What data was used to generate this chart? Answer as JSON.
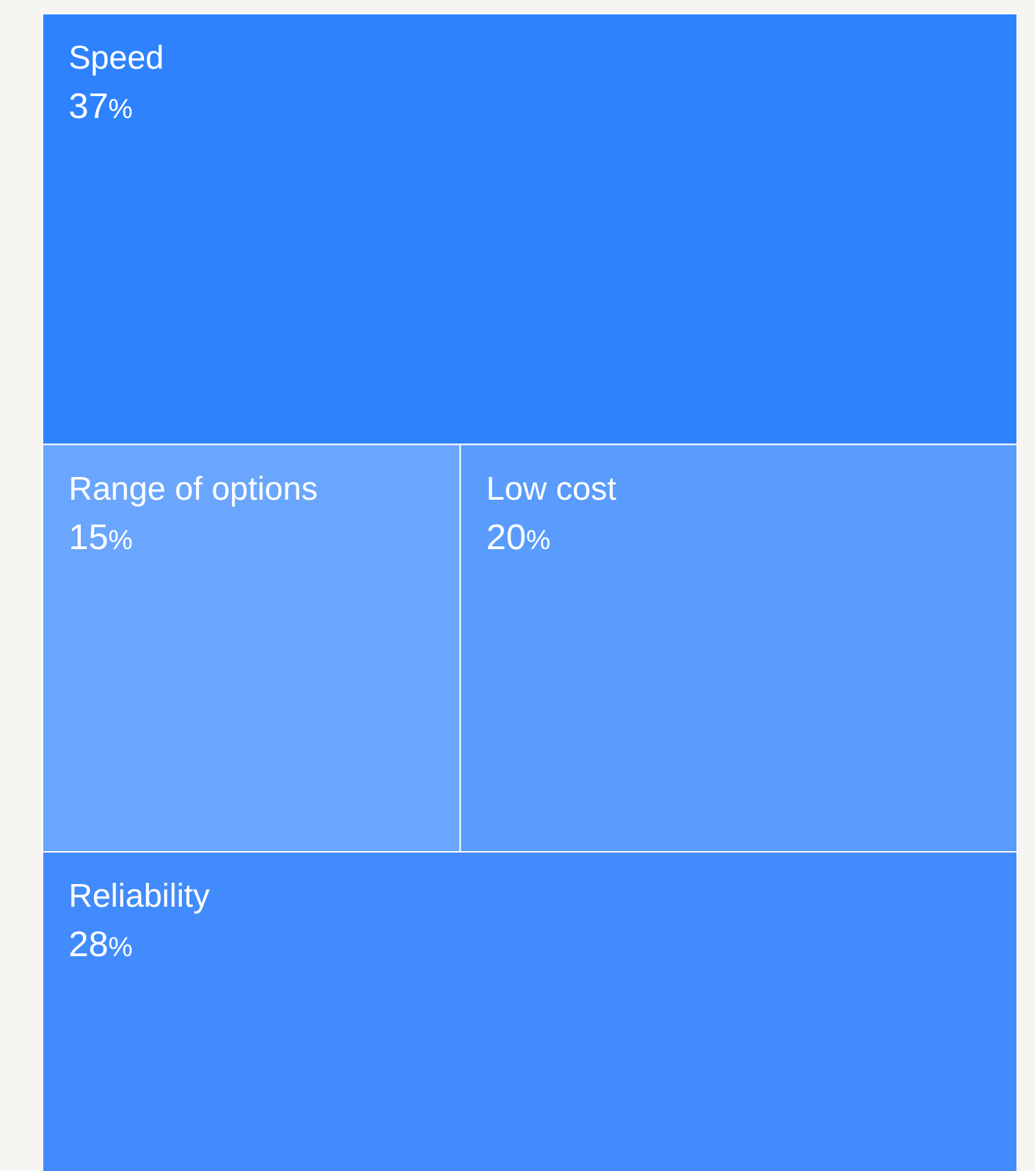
{
  "chart_data": {
    "type": "other",
    "categories": [
      "Speed",
      "Range of options",
      "Low cost",
      "Reliability"
    ],
    "values": [
      37,
      15,
      20,
      28
    ],
    "value_labels": [
      "37%",
      "15%",
      "20%",
      "28%"
    ],
    "colors": [
      "#2e82fe",
      "#6aa6fd",
      "#5a9cfd",
      "#428bfc"
    ]
  }
}
